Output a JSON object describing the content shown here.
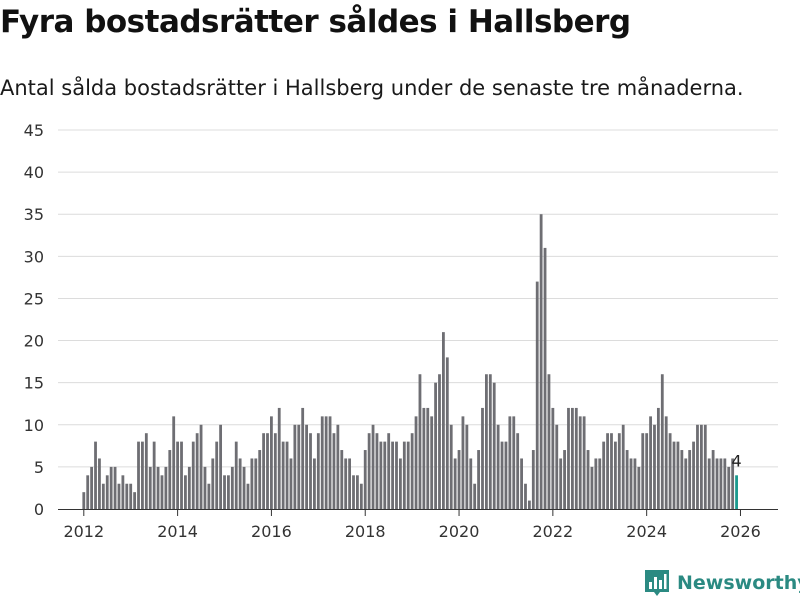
{
  "header": {
    "title": "Fyra bostadsrätter såldes i Hallsberg",
    "subtitle": "Antal sålda bostadsrätter i Hallsberg under de senaste tre månaderna."
  },
  "brand": {
    "name": "Newsworthy",
    "icon": "newsworthy-logo-icon",
    "color": "#2b8a82"
  },
  "colors": {
    "bar": "#6e6e73",
    "highlight": "#1a9a8e",
    "grid": "#dcdcdc"
  },
  "chart_data": {
    "type": "bar",
    "title": "Fyra bostadsrätter såldes i Hallsberg",
    "subtitle": "Antal sålda bostadsrätter i Hallsberg under de senaste tre månaderna.",
    "xlabel": "",
    "ylabel": "",
    "ylim": [
      0,
      45
    ],
    "yticks": [
      0,
      5,
      10,
      15,
      20,
      25,
      30,
      35,
      40,
      45
    ],
    "xticks": [
      "2012",
      "2014",
      "2016",
      "2018",
      "2020",
      "2022",
      "2024",
      "2026"
    ],
    "x_range": [
      2011.45,
      2026.8
    ],
    "grid": true,
    "start": [
      2012,
      1
    ],
    "series": [
      {
        "name": "Sålda bostadsrätter",
        "values": [
          2,
          4,
          5,
          8,
          6,
          3,
          4,
          5,
          5,
          3,
          4,
          3,
          3,
          2,
          8,
          8,
          9,
          5,
          8,
          5,
          4,
          5,
          7,
          11,
          8,
          8,
          4,
          5,
          8,
          9,
          10,
          5,
          3,
          6,
          8,
          10,
          4,
          4,
          5,
          8,
          6,
          5,
          3,
          6,
          6,
          7,
          9,
          9,
          11,
          9,
          12,
          8,
          8,
          6,
          10,
          10,
          12,
          10,
          9,
          6,
          9,
          11,
          11,
          11,
          9,
          10,
          7,
          6,
          6,
          4,
          4,
          3,
          7,
          9,
          10,
          9,
          8,
          8,
          9,
          8,
          8,
          6,
          8,
          8,
          9,
          11,
          16,
          12,
          12,
          11,
          15,
          16,
          21,
          18,
          10,
          6,
          7,
          11,
          10,
          6,
          3,
          7,
          12,
          16,
          16,
          15,
          10,
          8,
          8,
          11,
          11,
          9,
          6,
          3,
          1,
          7,
          27,
          35,
          31,
          16,
          12,
          10,
          6,
          7,
          12,
          12,
          12,
          11,
          11,
          7,
          5,
          6,
          6,
          8,
          9,
          9,
          8,
          9,
          10,
          7,
          6,
          6,
          5,
          9,
          9,
          11,
          10,
          12,
          16,
          11,
          9,
          8,
          8,
          7,
          6,
          7,
          8,
          10,
          10,
          10,
          6,
          7,
          6,
          6,
          6,
          5,
          6,
          4
        ]
      }
    ],
    "highlight": {
      "index": 167,
      "label": "4"
    }
  }
}
